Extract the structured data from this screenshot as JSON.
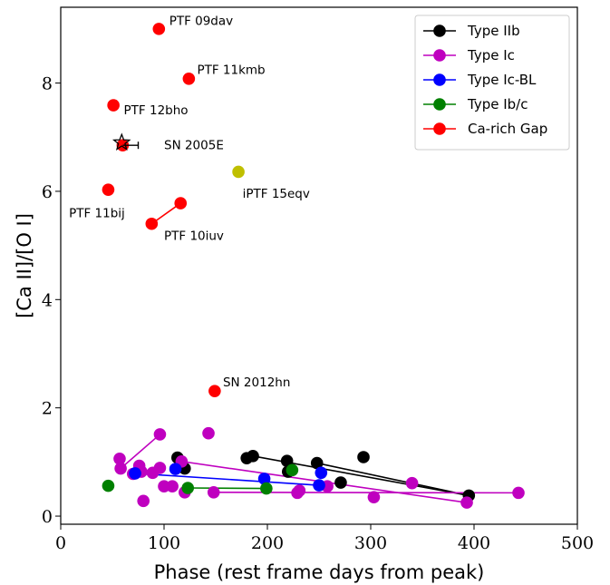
{
  "chart_data": {
    "type": "scatter",
    "xlabel": "Phase (rest frame days from peak)",
    "ylabel": "[Ca II]/[O I]",
    "xlim": [
      0,
      500
    ],
    "ylim": [
      -0.15,
      9.4
    ],
    "xticks": [
      0,
      100,
      200,
      300,
      400,
      500
    ],
    "yticks": [
      0,
      2,
      4,
      6,
      8
    ],
    "grid": false,
    "legend_placement": "top-right",
    "series": [
      {
        "name": "Type IIb",
        "color": "#000000",
        "points": [
          [
            113,
            1.08
          ],
          [
            120,
            0.88
          ],
          [
            180,
            1.07
          ],
          [
            186,
            1.11
          ],
          [
            219,
            1.02
          ],
          [
            220,
            0.82
          ],
          [
            248,
            0.98
          ],
          [
            271,
            0.62
          ],
          [
            293,
            1.09
          ],
          [
            395,
            0.38
          ]
        ],
        "lines": [
          [
            [
              186,
              1.11
            ],
            [
              395,
              0.38
            ]
          ],
          [
            [
              248,
              0.98
            ],
            [
              395,
              0.38
            ]
          ]
        ]
      },
      {
        "name": "Type Ic",
        "color": "#bf00bf",
        "points": [
          [
            57,
            1.06
          ],
          [
            58,
            0.88
          ],
          [
            70,
            0.78
          ],
          [
            78,
            0.82
          ],
          [
            76,
            0.93
          ],
          [
            80,
            0.28
          ],
          [
            89,
            0.8
          ],
          [
            96,
            0.89
          ],
          [
            96,
            1.51
          ],
          [
            100,
            0.55
          ],
          [
            108,
            0.55
          ],
          [
            117,
            1.01
          ],
          [
            120,
            0.44
          ],
          [
            143,
            1.53
          ],
          [
            148,
            0.44
          ],
          [
            229,
            0.43
          ],
          [
            231,
            0.47
          ],
          [
            258,
            0.55
          ],
          [
            303,
            0.35
          ],
          [
            340,
            0.61
          ],
          [
            393,
            0.25
          ],
          [
            443,
            0.43
          ]
        ],
        "lines": [
          [
            [
              58,
              0.88
            ],
            [
              96,
              1.51
            ]
          ],
          [
            [
              148,
              0.44
            ],
            [
              443,
              0.43
            ]
          ],
          [
            [
              117,
              1.01
            ],
            [
              393,
              0.25
            ]
          ]
        ]
      },
      {
        "name": "Type Ic-BL",
        "color": "#0000ff",
        "points": [
          [
            72,
            0.79
          ],
          [
            111,
            0.87
          ],
          [
            197,
            0.69
          ],
          [
            252,
            0.8
          ],
          [
            250,
            0.57
          ]
        ],
        "lines": [
          [
            [
              72,
              0.79
            ],
            [
              250,
              0.57
            ]
          ]
        ]
      },
      {
        "name": "Type Ib/c",
        "color": "#008000",
        "points": [
          [
            46,
            0.56
          ],
          [
            123,
            0.52
          ],
          [
            199,
            0.51
          ],
          [
            224,
            0.85
          ]
        ],
        "lines": [
          [
            [
              123,
              0.52
            ],
            [
              199,
              0.51
            ]
          ]
        ]
      },
      {
        "name": "Ca-rich Gap",
        "color": "#ff0000",
        "points": [
          [
            95,
            9.0
          ],
          [
            124,
            8.08
          ],
          [
            51,
            7.59
          ],
          [
            60,
            6.85
          ],
          [
            46,
            6.03
          ],
          [
            116,
            5.78
          ],
          [
            88,
            5.4
          ],
          [
            149,
            2.31
          ]
        ],
        "lines": [
          [
            [
              88,
              5.4
            ],
            [
              116,
              5.78
            ]
          ]
        ]
      }
    ],
    "extra_points": [
      {
        "label": "iPTF 15eqv",
        "color": "#bfbf00",
        "x": 172,
        "y": 6.36
      }
    ],
    "star_marker": {
      "x": 59,
      "y": 6.9
    },
    "error_bar": {
      "y": 6.85,
      "x_from": 60,
      "x_to": 75
    },
    "annotations": [
      {
        "text": "PTF 09dav",
        "x": 105,
        "y": 9.07
      },
      {
        "text": "PTF 11kmb",
        "x": 132,
        "y": 8.17
      },
      {
        "text": "PTF 12bho",
        "x": 61,
        "y": 7.42
      },
      {
        "text": "SN 2005E",
        "x": 100,
        "y": 6.78
      },
      {
        "text": "iPTF 15eqv",
        "x": 176,
        "y": 5.88
      },
      {
        "text": "PTF 11bij",
        "x": 8,
        "y": 5.52
      },
      {
        "text": "PTF 10iuv",
        "x": 100,
        "y": 5.1
      },
      {
        "text": "SN 2012hn",
        "x": 157,
        "y": 2.4
      }
    ]
  }
}
